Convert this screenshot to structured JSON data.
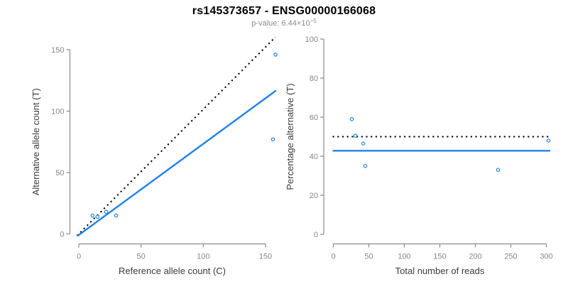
{
  "title": "rs145373657 - ENSG00000166068",
  "subtitle": {
    "prefix": "p-value: 6.44×10",
    "exponent": "−5"
  },
  "colors": {
    "accent_blue": "#1E82E8",
    "line_black": "#000000",
    "axis_gray": "#8a8a8a",
    "tick_label_gray": "#878787",
    "axis_title_color": "#3c3c3c",
    "subtitle_gray": "#8c8c8c",
    "background": "#ffffff"
  },
  "chart_data": [
    {
      "type": "scatter",
      "name": "allele-counts",
      "title": "",
      "xlabel": "Reference allele count (C)",
      "ylabel": "Alternative allele count (T)",
      "xlim": [
        0,
        150
      ],
      "ylim": [
        0,
        150
      ],
      "xticks": [
        0,
        50,
        100,
        150
      ],
      "yticks": [
        0,
        50,
        100,
        150
      ],
      "grid": false,
      "legend": "none",
      "point_style": "open-circle",
      "points": [
        {
          "x": 11,
          "y": 15
        },
        {
          "x": 15,
          "y": 14
        },
        {
          "x": 22,
          "y": 18
        },
        {
          "x": 30,
          "y": 15
        },
        {
          "x": 158,
          "y": 146
        },
        {
          "x": 156,
          "y": 77
        }
      ],
      "lines": [
        {
          "name": "identity-line",
          "style": "dotted",
          "color": "#000000",
          "x1": -1.5,
          "y1": -1.5,
          "x2": 158,
          "y2": 160.3,
          "meaning": "expected 1:1 allele ratio"
        },
        {
          "name": "fit-line",
          "style": "solid",
          "color": "#1E82E8",
          "x1": -1,
          "y1": -1.6,
          "x2": 158.5,
          "y2": 116.8,
          "meaning": "observed allelic ratio fit, slope ~0.74"
        }
      ]
    },
    {
      "type": "scatter",
      "name": "percentage-alternative-vs-reads",
      "title": "",
      "xlabel": "Total number of reads",
      "ylabel": "Percentage alternative (T)",
      "xlim": [
        0,
        300
      ],
      "ylim": [
        0,
        100
      ],
      "xticks": [
        0,
        50,
        100,
        150,
        200,
        250,
        300
      ],
      "yticks": [
        0,
        20,
        40,
        60,
        80,
        100
      ],
      "grid": false,
      "legend": "none",
      "point_style": "open-circle",
      "points": [
        {
          "x": 26,
          "y": 59
        },
        {
          "x": 31,
          "y": 50.5
        },
        {
          "x": 42,
          "y": 46.5
        },
        {
          "x": 45,
          "y": 35
        },
        {
          "x": 232,
          "y": 33
        },
        {
          "x": 303,
          "y": 48
        }
      ],
      "lines": [
        {
          "name": "expected-percentage-line",
          "style": "dotted",
          "color": "#000000",
          "x1": -1,
          "y1": 50,
          "x2": 305,
          "y2": 50,
          "meaning": "expected 50% alternative"
        },
        {
          "name": "observed-percentage-line",
          "style": "solid",
          "color": "#1E82E8",
          "x1": -1,
          "y1": 42.8,
          "x2": 305.5,
          "y2": 42.8,
          "meaning": "observed mean percentage ~43%"
        }
      ]
    }
  ]
}
